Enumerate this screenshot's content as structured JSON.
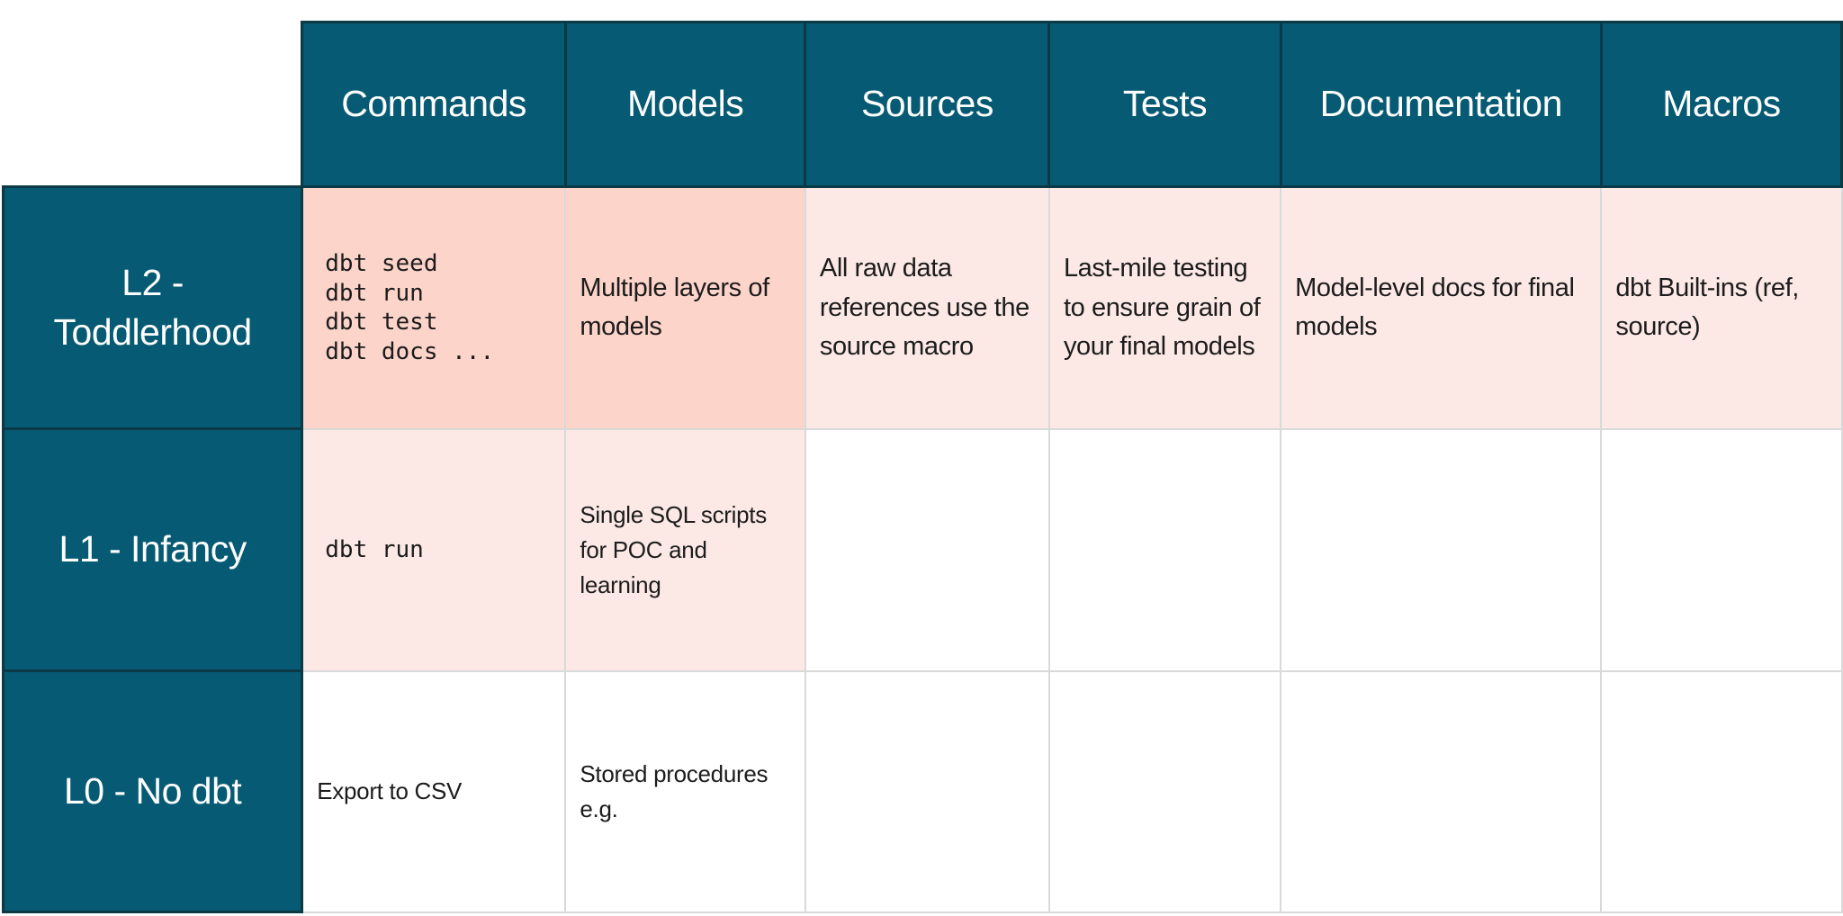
{
  "table": {
    "columns": [
      "Commands",
      "Models",
      "Sources",
      "Tests",
      "Documentation",
      "Macros"
    ],
    "rows": [
      {
        "label": "L2 - Toddlerhood",
        "commands": "dbt seed\ndbt run\ndbt test\ndbt docs ...",
        "models": "Multiple layers of models",
        "sources": "All raw data references use the source macro",
        "tests": "Last-mile testing to ensure grain of your final models",
        "documentation": "Model-level docs for final models",
        "macros": "dbt Built-ins (ref, source)"
      },
      {
        "label": "L1 - Infancy",
        "commands": "dbt run",
        "models": "Single SQL scripts for POC and learning",
        "sources": "",
        "tests": "",
        "documentation": "",
        "macros": ""
      },
      {
        "label": "L0 - No dbt",
        "commands": "Export to CSV",
        "models": "Stored procedures e.g.",
        "sources": "",
        "tests": "",
        "documentation": "",
        "macros": ""
      }
    ]
  },
  "colors": {
    "header_bg": "#065A73",
    "header_border": "#0B3945",
    "highlight_strong": "#FCD4C9",
    "highlight_light": "#FCE9E5",
    "grid_border": "#D9D9D9",
    "header_text": "#FFFFFF",
    "body_text": "#1C1C1C"
  }
}
